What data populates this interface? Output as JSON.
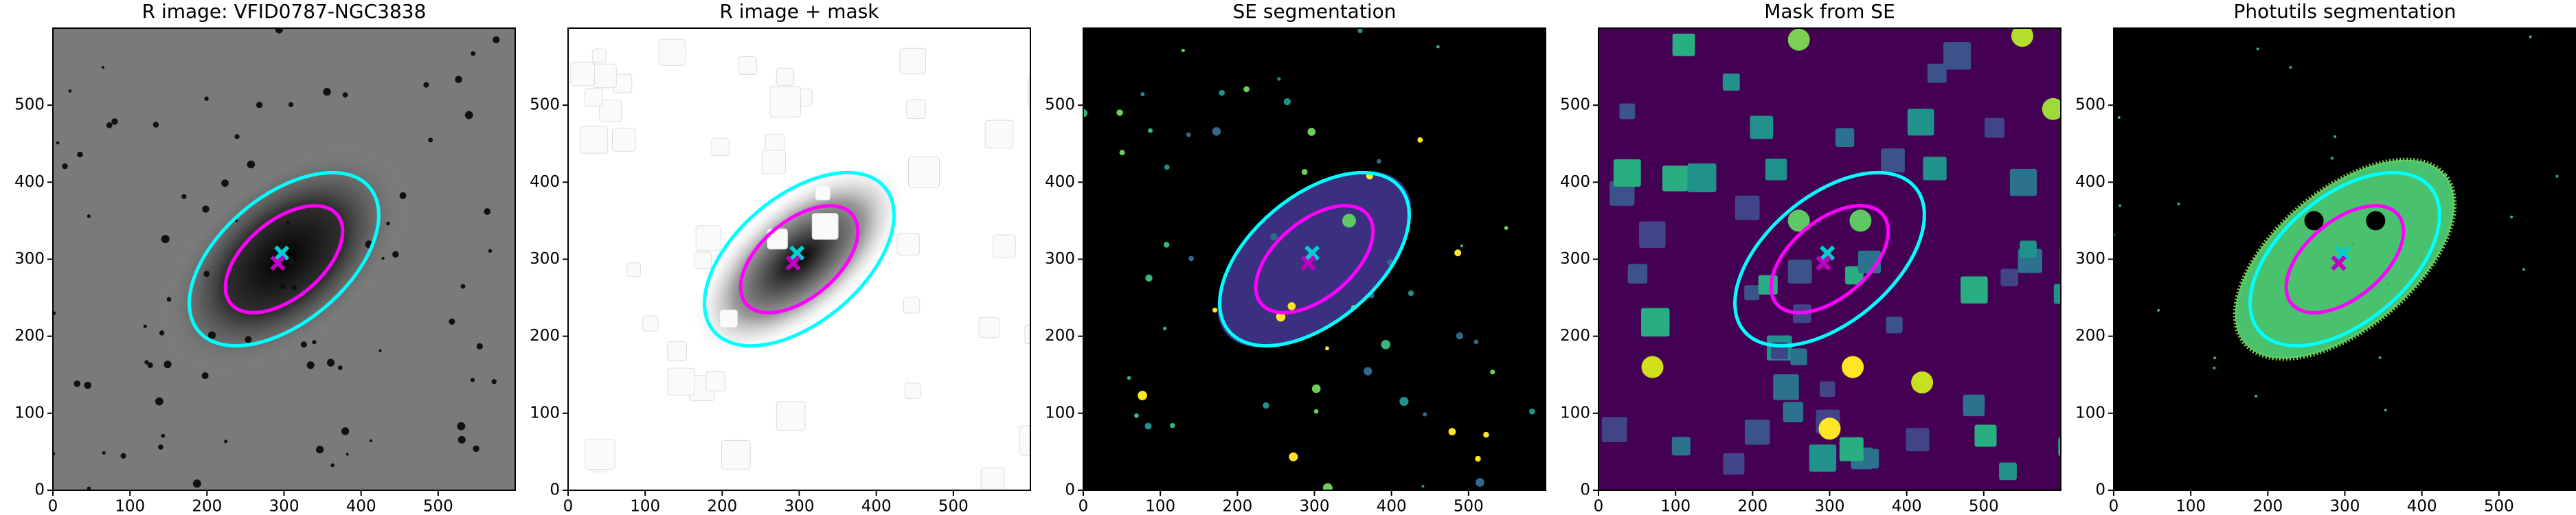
{
  "chart_data": [
    {
      "type": "image",
      "title": "R image: VFID0787-NGC3838",
      "xlim": [
        0,
        600
      ],
      "ylim": [
        0,
        600
      ],
      "xticks": [
        0,
        100,
        200,
        300,
        400,
        500
      ],
      "yticks": [
        0,
        100,
        200,
        300,
        400,
        500
      ]
    },
    {
      "type": "image",
      "title": "R image + mask",
      "xlim": [
        0,
        600
      ],
      "ylim": [
        0,
        600
      ],
      "xticks": [
        0,
        100,
        200,
        300,
        400,
        500
      ],
      "yticks": [
        0,
        100,
        200,
        300,
        400,
        500
      ]
    },
    {
      "type": "image",
      "title": "SE segmentation",
      "xlim": [
        0,
        600
      ],
      "ylim": [
        0,
        600
      ],
      "xticks": [
        0,
        100,
        200,
        300,
        400,
        500
      ],
      "yticks": [
        0,
        100,
        200,
        300,
        400,
        500
      ]
    },
    {
      "type": "image",
      "title": "Mask from SE",
      "xlim": [
        0,
        600
      ],
      "ylim": [
        0,
        600
      ],
      "xticks": [
        0,
        100,
        200,
        300,
        400,
        500
      ],
      "yticks": [
        0,
        100,
        200,
        300,
        400,
        500
      ]
    },
    {
      "type": "image",
      "title": "Photutils segmentation",
      "xlim": [
        0,
        600
      ],
      "ylim": [
        0,
        600
      ],
      "xticks": [
        0,
        100,
        200,
        300,
        400,
        500
      ],
      "yticks": [
        0,
        100,
        200,
        300,
        400,
        500
      ]
    }
  ]
}
